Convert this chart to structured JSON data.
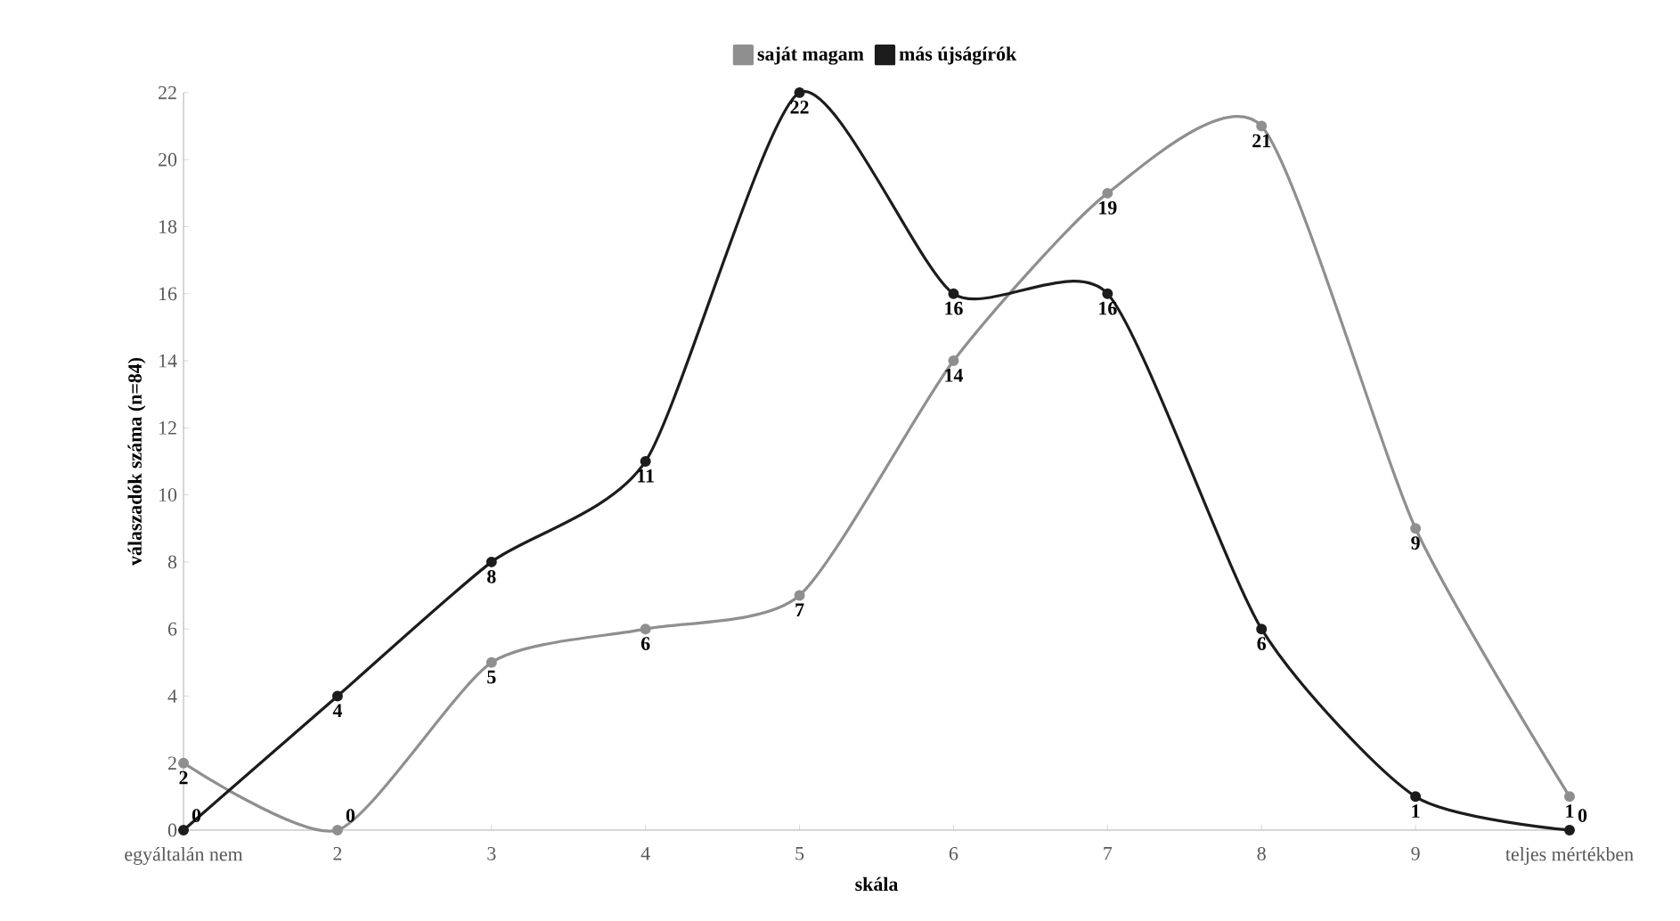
{
  "chart_data": {
    "type": "line",
    "xlabel": "skála",
    "ylabel": "válaszadók száma (n=84)",
    "categories": [
      "egyáltalán nem",
      "2",
      "3",
      "4",
      "5",
      "6",
      "7",
      "8",
      "9",
      "teljes mértékben"
    ],
    "series": [
      {
        "name": "saját magam",
        "color": "#8f8f8f",
        "values": [
          2,
          0,
          5,
          6,
          7,
          14,
          19,
          21,
          9,
          1
        ]
      },
      {
        "name": "más újságírók",
        "color": "#1c1c1c",
        "values": [
          0,
          4,
          8,
          11,
          22,
          16,
          16,
          6,
          1,
          0
        ]
      }
    ],
    "ylim": [
      0,
      22
    ],
    "yticks": [
      0,
      2,
      4,
      6,
      8,
      10,
      12,
      14,
      16,
      18,
      20,
      22
    ],
    "grid": false,
    "legend": "top",
    "marker": "circle",
    "line_style": "solid",
    "data_labels": true
  }
}
